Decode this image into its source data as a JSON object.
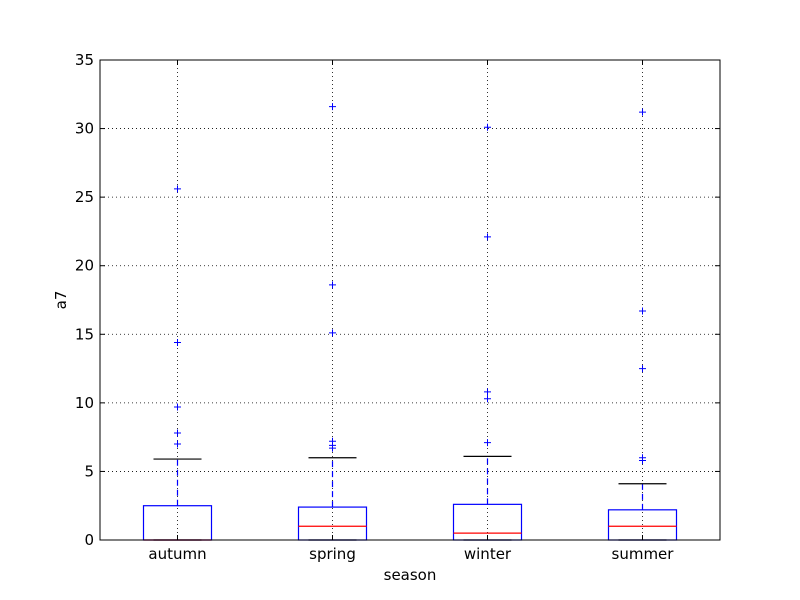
{
  "chart_data": {
    "type": "box",
    "title": "",
    "xlabel": "season",
    "ylabel": "a7",
    "ylim": [
      0,
      35
    ],
    "yticks": [
      0,
      5,
      10,
      15,
      20,
      25,
      30,
      35
    ],
    "grid": true,
    "categories": [
      "autumn",
      "spring",
      "winter",
      "summer"
    ],
    "boxes": [
      {
        "category": "autumn",
        "whisker_low": 0,
        "q1": 0,
        "median": 0,
        "q3": 2.5,
        "whisker_high": 5.9,
        "outliers": [
          7.0,
          7.8,
          9.7,
          14.4,
          25.6
        ]
      },
      {
        "category": "spring",
        "whisker_low": 0,
        "q1": 0,
        "median": 1.0,
        "q3": 2.4,
        "whisker_high": 6.0,
        "outliers": [
          6.7,
          6.9,
          7.2,
          15.1,
          18.6,
          31.6
        ]
      },
      {
        "category": "winter",
        "whisker_low": 0,
        "q1": 0,
        "median": 0.5,
        "q3": 2.6,
        "whisker_high": 6.1,
        "outliers": [
          7.1,
          10.3,
          10.8,
          22.1,
          30.1
        ]
      },
      {
        "category": "summer",
        "whisker_low": 0,
        "q1": 0,
        "median": 1.0,
        "q3": 2.2,
        "whisker_high": 4.1,
        "outliers": [
          5.8,
          6.0,
          12.5,
          16.7,
          31.2
        ]
      }
    ],
    "colors": {
      "box": "#0000ff",
      "median": "#ff0000",
      "whisker": "#0000ff",
      "cap": "#000000",
      "flier": "#0000ff",
      "grid": "#000000"
    }
  }
}
